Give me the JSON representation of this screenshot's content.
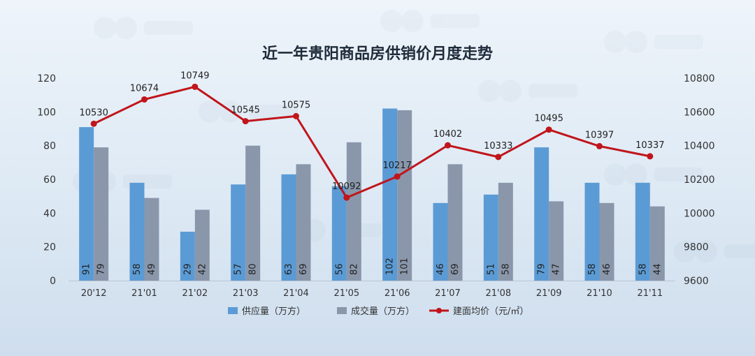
{
  "chart_data": {
    "type": "bar",
    "title": "近一年贵阳商品房供销价月度走势",
    "categories": [
      "20'12",
      "21'01",
      "21'02",
      "21'03",
      "21'04",
      "21'05",
      "21'06",
      "21'07",
      "21'08",
      "21'09",
      "21'10",
      "21'11"
    ],
    "series": [
      {
        "name": "供应量（万方）",
        "type": "bar",
        "axis": "left",
        "color": "#5b9bd5",
        "values": [
          91,
          58,
          29,
          57,
          63,
          56,
          102,
          46,
          51,
          79,
          58,
          58
        ]
      },
      {
        "name": "成交量（万方）",
        "type": "bar",
        "axis": "left",
        "color": "#8a97ab",
        "values": [
          79,
          49,
          42,
          80,
          69,
          82,
          101,
          69,
          58,
          47,
          46,
          44
        ]
      },
      {
        "name": "建面均价（元/㎡）",
        "type": "line",
        "axis": "right",
        "color": "#c0151b",
        "values": [
          10530,
          10674,
          10749,
          10545,
          10575,
          10092,
          10217,
          10402,
          10333,
          10495,
          10397,
          10337
        ]
      }
    ],
    "y_left": {
      "min": 0,
      "max": 120,
      "ticks": [
        0,
        20,
        40,
        60,
        80,
        100,
        120
      ]
    },
    "y_right": {
      "min": 9600,
      "max": 10800,
      "ticks": [
        9600,
        9800,
        10000,
        10200,
        10400,
        10600,
        10800
      ]
    },
    "legend_position": "bottom",
    "grid": false
  }
}
